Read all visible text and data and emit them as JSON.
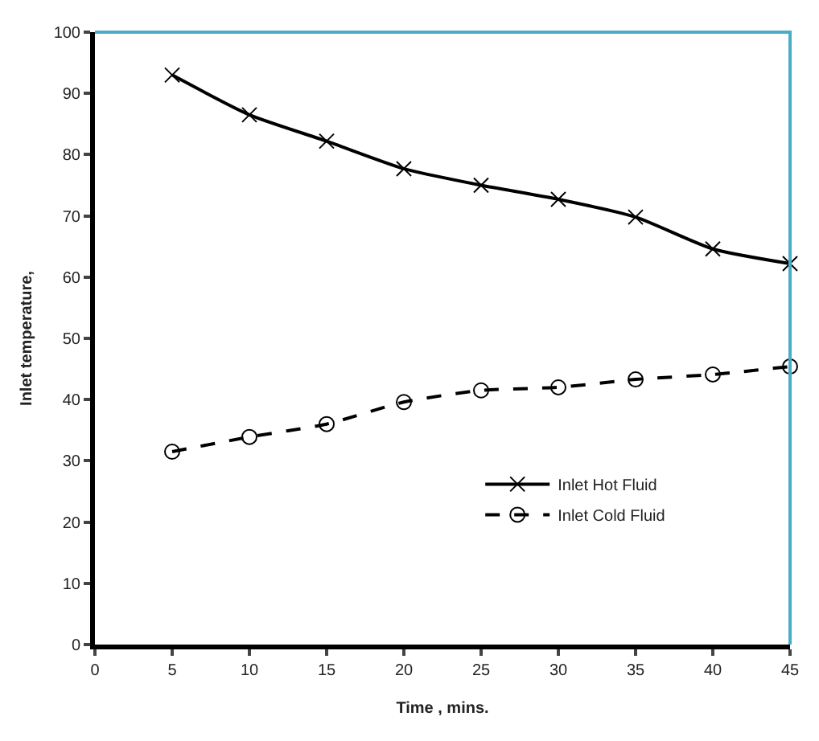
{
  "chart_data": {
    "type": "line",
    "xlabel": "Time , mins.",
    "ylabel": "Inlet temperature,",
    "x": [
      5,
      10,
      15,
      20,
      25,
      30,
      35,
      40,
      45
    ],
    "xlim": [
      0,
      45
    ],
    "xticks": [
      0,
      5,
      10,
      15,
      20,
      25,
      30,
      35,
      40,
      45
    ],
    "ylim": [
      0,
      100
    ],
    "yticks": [
      0,
      10,
      20,
      30,
      40,
      50,
      60,
      70,
      80,
      90,
      100
    ],
    "grid": false,
    "legend": "bottom right",
    "series": [
      {
        "name": "Inlet Hot Fluid",
        "color": "#000000",
        "marker": "cross",
        "line_style": "solid",
        "values": [
          93,
          86.5,
          82.2,
          77.7,
          75,
          72.7,
          69.8,
          64.6,
          62.2
        ]
      },
      {
        "name": "Inlet Cold Fluid",
        "color": "#000000",
        "marker": "circle",
        "line_style": "dashed",
        "values": [
          31.5,
          33.9,
          36,
          39.6,
          41.5,
          42,
          43.3,
          44.1,
          45.4
        ]
      }
    ]
  }
}
